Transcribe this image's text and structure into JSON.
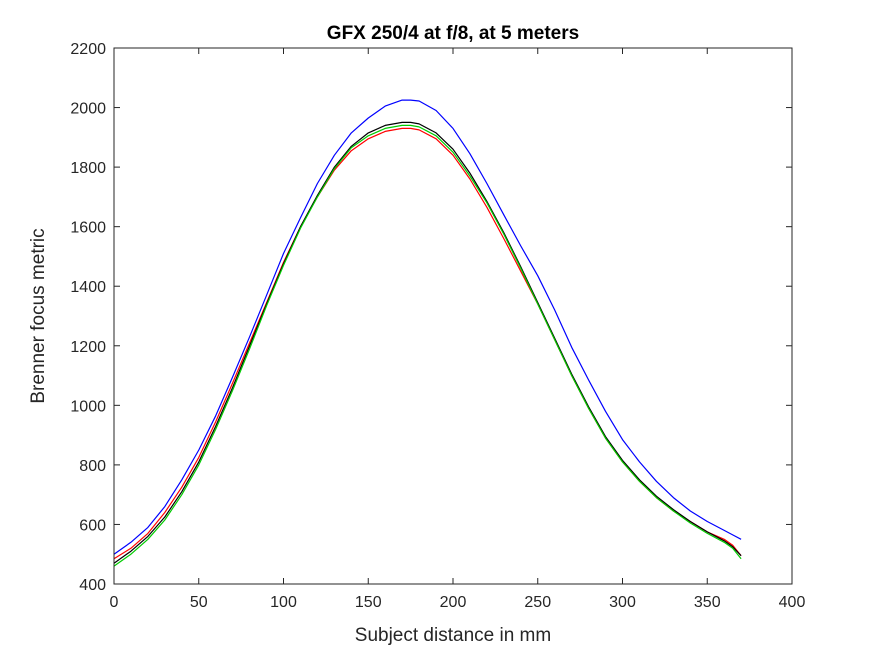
{
  "chart_data": {
    "type": "line",
    "title": "GFX 250/4 at f/8, at 5 meters",
    "xlabel": "Subject distance in mm",
    "ylabel": "Brenner focus metric",
    "xlim": [
      0,
      400
    ],
    "ylim": [
      400,
      2200
    ],
    "xticks": [
      0,
      50,
      100,
      150,
      200,
      250,
      300,
      350,
      400
    ],
    "yticks": [
      400,
      600,
      800,
      1000,
      1200,
      1400,
      1600,
      1800,
      2000,
      2200
    ],
    "grid": false,
    "legend": "none",
    "series": [
      {
        "color": "#0000ff",
        "x": [
          0,
          10,
          20,
          30,
          40,
          50,
          60,
          70,
          80,
          90,
          100,
          110,
          120,
          130,
          140,
          150,
          160,
          170,
          175,
          180,
          190,
          200,
          210,
          220,
          230,
          240,
          250,
          260,
          270,
          280,
          290,
          300,
          310,
          320,
          330,
          340,
          350,
          360,
          365,
          370
        ],
        "y": [
          500,
          540,
          590,
          660,
          750,
          850,
          965,
          1095,
          1230,
          1370,
          1510,
          1630,
          1745,
          1840,
          1915,
          1965,
          2005,
          2025,
          2025,
          2022,
          1990,
          1930,
          1845,
          1745,
          1640,
          1535,
          1435,
          1320,
          1195,
          1085,
          980,
          885,
          810,
          745,
          690,
          645,
          610,
          580,
          565,
          550
        ]
      },
      {
        "color": "#ff0000",
        "x": [
          0,
          10,
          20,
          30,
          40,
          50,
          60,
          70,
          80,
          90,
          100,
          110,
          120,
          130,
          140,
          150,
          160,
          170,
          175,
          180,
          190,
          200,
          210,
          220,
          230,
          240,
          250,
          260,
          270,
          280,
          290,
          300,
          310,
          320,
          330,
          340,
          350,
          360,
          365,
          370
        ],
        "y": [
          485,
          520,
          570,
          640,
          725,
          825,
          945,
          1075,
          1210,
          1345,
          1480,
          1600,
          1700,
          1790,
          1855,
          1895,
          1920,
          1930,
          1930,
          1925,
          1895,
          1840,
          1760,
          1665,
          1560,
          1450,
          1340,
          1220,
          1100,
          990,
          890,
          810,
          745,
          690,
          645,
          610,
          575,
          550,
          530,
          495
        ]
      },
      {
        "color": "#000000",
        "x": [
          0,
          10,
          20,
          30,
          40,
          50,
          60,
          70,
          80,
          90,
          100,
          110,
          120,
          130,
          140,
          150,
          160,
          170,
          175,
          180,
          190,
          200,
          210,
          220,
          230,
          240,
          250,
          260,
          270,
          280,
          290,
          300,
          310,
          320,
          330,
          340,
          350,
          360,
          365,
          370
        ],
        "y": [
          470,
          510,
          560,
          625,
          710,
          810,
          930,
          1060,
          1200,
          1340,
          1475,
          1600,
          1705,
          1800,
          1870,
          1915,
          1940,
          1950,
          1950,
          1945,
          1915,
          1860,
          1780,
          1685,
          1580,
          1465,
          1345,
          1225,
          1105,
          995,
          895,
          815,
          750,
          695,
          650,
          610,
          575,
          545,
          525,
          495
        ]
      },
      {
        "color": "#00cc00",
        "x": [
          0,
          10,
          20,
          30,
          40,
          50,
          60,
          70,
          80,
          90,
          100,
          110,
          120,
          130,
          140,
          150,
          160,
          170,
          175,
          180,
          190,
          200,
          210,
          220,
          230,
          240,
          250,
          260,
          270,
          280,
          290,
          300,
          310,
          320,
          330,
          340,
          350,
          360,
          365,
          370
        ],
        "y": [
          460,
          500,
          550,
          615,
          700,
          800,
          920,
          1050,
          1190,
          1335,
          1470,
          1595,
          1700,
          1795,
          1865,
          1905,
          1930,
          1940,
          1940,
          1935,
          1905,
          1850,
          1770,
          1680,
          1575,
          1460,
          1340,
          1220,
          1100,
          990,
          890,
          810,
          745,
          690,
          645,
          605,
          570,
          540,
          520,
          485
        ]
      }
    ]
  }
}
